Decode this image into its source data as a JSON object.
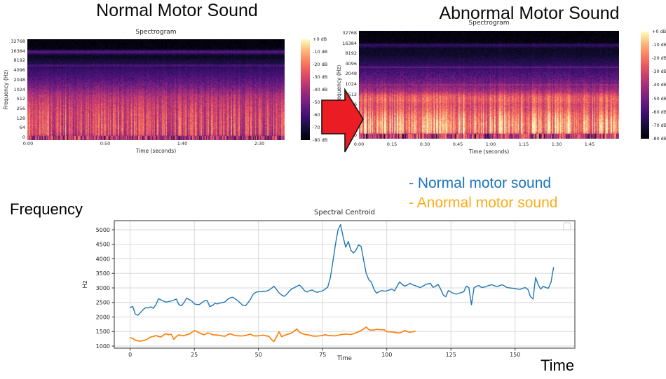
{
  "titles": {
    "left": "Normal Motor Sound",
    "right": "Abnormal Motor Sound"
  },
  "overlay_labels": {
    "frequency": "Frequency",
    "time": "Time"
  },
  "legend_overlay": {
    "normal": {
      "label": "- Normal motor sound",
      "color": "#1B74BC"
    },
    "abnormal": {
      "label": "-  Anormal motor sound",
      "color": "#FBAC17"
    }
  },
  "arrow_color": "#EC1C24",
  "spectrograms": {
    "left": {
      "title": "Spectrogram",
      "ylabel": "Frequency (Hz)",
      "xlabel": "Time (seconds)",
      "yticks": [
        "32768",
        "16384",
        "8192",
        "4096",
        "2048",
        "1024",
        "512",
        "256",
        "128",
        "64",
        "0"
      ],
      "xticks": [
        "0:00",
        "0:50",
        "1:40",
        "2:30"
      ],
      "colorbar_ticks": [
        "+0 dB",
        "-10 dB",
        "-20 dB",
        "-30 dB",
        "-40 dB",
        "-50 dB",
        "-60 dB",
        "-70 dB",
        "-80 dB"
      ]
    },
    "right": {
      "title": "Spectrogram",
      "ylabel": "Frequency (Hz)",
      "xlabel": "Time (seconds)",
      "yticks": [
        "32768",
        "16384",
        "8192",
        "4096",
        "2048",
        "1024",
        "512",
        "256",
        "128",
        "64",
        "0"
      ],
      "xticks": [
        "0:00",
        "0:15",
        "0:30",
        "0:45",
        "1:00",
        "1:15",
        "1:30",
        "1:45"
      ],
      "colorbar_ticks": [
        "+0 dB",
        "-10 dB",
        "-20 dB",
        "-30 dB",
        "-40 dB",
        "-50 dB",
        "-60 dB",
        "-70 dB",
        "-80 dB"
      ]
    }
  },
  "chart_data": {
    "type": "line",
    "title": "Spectral Centroid",
    "xlabel": "Time",
    "ylabel": "Hz",
    "xticks": [
      0,
      25,
      50,
      75,
      100,
      125,
      150
    ],
    "yticks": [
      1000,
      1500,
      2000,
      2500,
      3000,
      3500,
      4000,
      4500,
      5000
    ],
    "xlim": [
      -6.2,
      173.3
    ],
    "ylim": [
      928,
      5313
    ],
    "grid": true,
    "legend_position": "upper right (empty box)",
    "series": [
      {
        "name": "Normal motor sound",
        "color": "#1f77b4",
        "points": [
          [
            0,
            2330
          ],
          [
            1,
            2360
          ],
          [
            2,
            2100
          ],
          [
            3,
            2060
          ],
          [
            4,
            2150
          ],
          [
            5,
            2250
          ],
          [
            6,
            2320
          ],
          [
            7,
            2310
          ],
          [
            8,
            2350
          ],
          [
            9,
            2300
          ],
          [
            10,
            2420
          ],
          [
            11,
            2630
          ],
          [
            12,
            2590
          ],
          [
            13,
            2550
          ],
          [
            14,
            2510
          ],
          [
            15,
            2530
          ],
          [
            16,
            2550
          ],
          [
            17,
            2580
          ],
          [
            18,
            2620
          ],
          [
            19,
            2420
          ],
          [
            20,
            2390
          ],
          [
            21,
            2500
          ],
          [
            22,
            2650
          ],
          [
            23,
            2600
          ],
          [
            24,
            2550
          ],
          [
            25,
            2450
          ],
          [
            26,
            2430
          ],
          [
            27,
            2430
          ],
          [
            28,
            2500
          ],
          [
            29,
            2560
          ],
          [
            30,
            2570
          ],
          [
            31,
            2360
          ],
          [
            32,
            2390
          ],
          [
            33,
            2470
          ],
          [
            34,
            2450
          ],
          [
            35,
            2480
          ],
          [
            36,
            2500
          ],
          [
            37,
            2520
          ],
          [
            38,
            2610
          ],
          [
            39,
            2660
          ],
          [
            40,
            2680
          ],
          [
            41,
            2620
          ],
          [
            42,
            2560
          ],
          [
            43,
            2470
          ],
          [
            44,
            2400
          ],
          [
            45,
            2390
          ],
          [
            46,
            2500
          ],
          [
            47,
            2630
          ],
          [
            48,
            2790
          ],
          [
            49,
            2850
          ],
          [
            50,
            2870
          ],
          [
            51,
            2870
          ],
          [
            52,
            2880
          ],
          [
            53,
            2890
          ],
          [
            54,
            2920
          ],
          [
            55,
            2980
          ],
          [
            56,
            3060
          ],
          [
            57,
            2950
          ],
          [
            58,
            2830
          ],
          [
            59,
            2760
          ],
          [
            60,
            2710
          ],
          [
            61,
            2780
          ],
          [
            62,
            2890
          ],
          [
            63,
            2970
          ],
          [
            64,
            3010
          ],
          [
            65,
            3060
          ],
          [
            66,
            3100
          ],
          [
            67,
            3010
          ],
          [
            68,
            2900
          ],
          [
            69,
            2860
          ],
          [
            70,
            2910
          ],
          [
            71,
            2930
          ],
          [
            72,
            2870
          ],
          [
            73,
            2850
          ],
          [
            74,
            2880
          ],
          [
            75,
            2900
          ],
          [
            76,
            2960
          ],
          [
            77,
            3030
          ],
          [
            78,
            3350
          ],
          [
            79,
            3900
          ],
          [
            80,
            4500
          ],
          [
            81,
            5000
          ],
          [
            82,
            5180
          ],
          [
            83,
            4750
          ],
          [
            84,
            4400
          ],
          [
            85,
            4600
          ],
          [
            86,
            4300
          ],
          [
            87,
            4200
          ],
          [
            88,
            4300
          ],
          [
            89,
            4480
          ],
          [
            90,
            4430
          ],
          [
            91,
            3950
          ],
          [
            92,
            3500
          ],
          [
            93,
            3280
          ],
          [
            94,
            3200
          ],
          [
            95,
            2960
          ],
          [
            96,
            2820
          ],
          [
            97,
            2870
          ],
          [
            98,
            2910
          ],
          [
            99,
            2890
          ],
          [
            100,
            2900
          ],
          [
            101,
            2930
          ],
          [
            102,
            2960
          ],
          [
            103,
            2900
          ],
          [
            104,
            3060
          ],
          [
            105,
            3210
          ],
          [
            106,
            3120
          ],
          [
            107,
            3060
          ],
          [
            108,
            3100
          ],
          [
            109,
            3160
          ],
          [
            110,
            3110
          ],
          [
            111,
            3080
          ],
          [
            112,
            3050
          ],
          [
            113,
            3010
          ],
          [
            114,
            3060
          ],
          [
            115,
            3110
          ],
          [
            116,
            3140
          ],
          [
            117,
            3160
          ],
          [
            118,
            3020
          ],
          [
            119,
            3060
          ],
          [
            120,
            3120
          ],
          [
            121,
            2960
          ],
          [
            122,
            2760
          ],
          [
            123,
            2700
          ],
          [
            124,
            2910
          ],
          [
            125,
            2860
          ],
          [
            126,
            2810
          ],
          [
            127,
            2790
          ],
          [
            128,
            2810
          ],
          [
            129,
            2840
          ],
          [
            130,
            2870
          ],
          [
            131,
            3060
          ],
          [
            132,
            3010
          ],
          [
            133,
            2420
          ],
          [
            134,
            3010
          ],
          [
            135,
            3060
          ],
          [
            136,
            3080
          ],
          [
            137,
            3010
          ],
          [
            138,
            3030
          ],
          [
            139,
            3060
          ],
          [
            140,
            3090
          ],
          [
            141,
            3110
          ],
          [
            142,
            3070
          ],
          [
            143,
            3050
          ],
          [
            144,
            3080
          ],
          [
            145,
            3110
          ],
          [
            146,
            3060
          ],
          [
            147,
            3010
          ],
          [
            148,
            3000
          ],
          [
            149,
            2990
          ],
          [
            150,
            2980
          ],
          [
            151,
            2960
          ],
          [
            152,
            2950
          ],
          [
            153,
            2990
          ],
          [
            154,
            3010
          ],
          [
            155,
            2950
          ],
          [
            156,
            2700
          ],
          [
            157,
            2620
          ],
          [
            158,
            3360
          ],
          [
            159,
            3110
          ],
          [
            160,
            2960
          ],
          [
            161,
            3060
          ],
          [
            162,
            3010
          ],
          [
            163,
            2990
          ],
          [
            164,
            3200
          ],
          [
            165,
            3700
          ]
        ]
      },
      {
        "name": "Anormal motor sound",
        "color": "#ff7f0e",
        "points": [
          [
            0,
            1290
          ],
          [
            1,
            1260
          ],
          [
            2,
            1205
          ],
          [
            3,
            1180
          ],
          [
            4,
            1170
          ],
          [
            5,
            1190
          ],
          [
            6,
            1210
          ],
          [
            7,
            1260
          ],
          [
            8,
            1310
          ],
          [
            9,
            1330
          ],
          [
            10,
            1365
          ],
          [
            11,
            1330
          ],
          [
            12,
            1310
          ],
          [
            13,
            1380
          ],
          [
            14,
            1425
          ],
          [
            15,
            1390
          ],
          [
            16,
            1405
          ],
          [
            17,
            1235
          ],
          [
            18,
            1330
          ],
          [
            19,
            1385
          ],
          [
            20,
            1360
          ],
          [
            21,
            1355
          ],
          [
            22,
            1390
          ],
          [
            23,
            1410
          ],
          [
            24,
            1470
          ],
          [
            25,
            1535
          ],
          [
            26,
            1495
          ],
          [
            27,
            1455
          ],
          [
            28,
            1410
          ],
          [
            29,
            1390
          ],
          [
            30,
            1445
          ],
          [
            31,
            1440
          ],
          [
            32,
            1390
          ],
          [
            33,
            1385
          ],
          [
            34,
            1375
          ],
          [
            35,
            1370
          ],
          [
            36,
            1345
          ],
          [
            37,
            1340
          ],
          [
            38,
            1390
          ],
          [
            39,
            1425
          ],
          [
            40,
            1390
          ],
          [
            41,
            1360
          ],
          [
            42,
            1355
          ],
          [
            43,
            1350
          ],
          [
            44,
            1355
          ],
          [
            45,
            1365
          ],
          [
            46,
            1390
          ],
          [
            47,
            1410
          ],
          [
            48,
            1355
          ],
          [
            49,
            1350
          ],
          [
            50,
            1355
          ],
          [
            51,
            1365
          ],
          [
            52,
            1375
          ],
          [
            53,
            1350
          ],
          [
            54,
            1340
          ],
          [
            55,
            1230
          ],
          [
            56,
            1155
          ],
          [
            57,
            1310
          ],
          [
            58,
            1495
          ],
          [
            59,
            1325
          ],
          [
            60,
            1360
          ],
          [
            61,
            1395
          ],
          [
            62,
            1420
          ],
          [
            63,
            1455
          ],
          [
            64,
            1520
          ],
          [
            65,
            1585
          ],
          [
            66,
            1475
          ],
          [
            67,
            1430
          ],
          [
            68,
            1405
          ],
          [
            69,
            1385
          ],
          [
            70,
            1375
          ],
          [
            71,
            1350
          ],
          [
            72,
            1340
          ],
          [
            73,
            1345
          ],
          [
            74,
            1355
          ],
          [
            75,
            1365
          ],
          [
            76,
            1395
          ],
          [
            77,
            1365
          ],
          [
            78,
            1360
          ],
          [
            79,
            1355
          ],
          [
            80,
            1355
          ],
          [
            81,
            1370
          ],
          [
            82,
            1395
          ],
          [
            83,
            1400
          ],
          [
            84,
            1415
          ],
          [
            85,
            1405
          ],
          [
            86,
            1400
          ],
          [
            87,
            1425
          ],
          [
            88,
            1455
          ],
          [
            89,
            1490
          ],
          [
            90,
            1535
          ],
          [
            91,
            1590
          ],
          [
            92,
            1655
          ],
          [
            93,
            1565
          ],
          [
            94,
            1545
          ],
          [
            95,
            1555
          ],
          [
            96,
            1575
          ],
          [
            97,
            1570
          ],
          [
            98,
            1560
          ],
          [
            99,
            1565
          ],
          [
            100,
            1495
          ],
          [
            101,
            1490
          ],
          [
            102,
            1485
          ],
          [
            103,
            1480
          ],
          [
            104,
            1455
          ],
          [
            105,
            1450
          ],
          [
            106,
            1490
          ],
          [
            107,
            1535
          ],
          [
            108,
            1495
          ],
          [
            109,
            1480
          ],
          [
            110,
            1490
          ],
          [
            111,
            1505
          ]
        ]
      }
    ]
  }
}
